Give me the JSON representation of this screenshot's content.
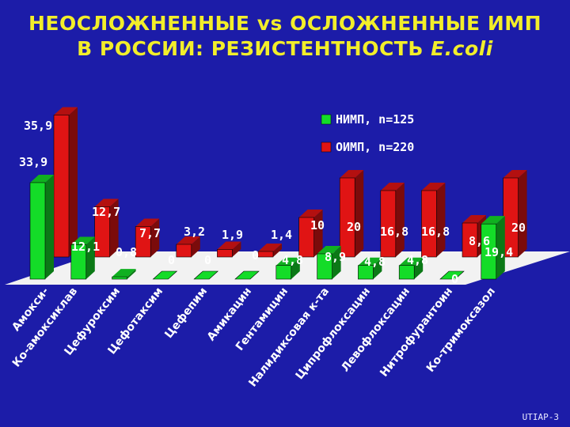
{
  "title_line1": "НЕОСЛОЖНЕННЫЕ vs ОСЛОЖНЕННЫЕ ИМП",
  "title_line2_prefix": "В РОССИИ: РЕЗИСТЕНТНОСТЬ ",
  "title_line2_organism": "E.coli",
  "footer": "UTIAP-3",
  "colors": {
    "background": "#1c1ca8",
    "title": "#f2ee2a",
    "nimp": "#14dc28",
    "oimp": "#e01414",
    "floor": "#f2f2f2",
    "labels": "#ffffff"
  },
  "chart_data": {
    "type": "bar",
    "style": "3d-perspective",
    "categories": [
      "Амокси-",
      "Ко-амоксиклав",
      "Цефуроксим",
      "Цефотаксим",
      "Цефепим",
      "Амикацин",
      "Гентамицин",
      "Налидиксовая к-та",
      "Ципрофлоксацин",
      "Левофлоксацин",
      "Нитрофурантоин",
      "Ко-тримоксазол"
    ],
    "series": [
      {
        "name": "НИМП, n=125",
        "color": "#14dc28",
        "values": [
          33.9,
          12.1,
          0.8,
          0,
          0,
          0,
          4.8,
          8.9,
          4.8,
          4.8,
          0,
          19.4
        ],
        "labels": [
          "33,9",
          "12,1",
          "0,8",
          "0",
          "0",
          "0",
          "4,8",
          "8,9",
          "4,8",
          "4,8",
          "0",
          "19,4"
        ]
      },
      {
        "name": "ОИМП, n=220",
        "color": "#e01414",
        "values": [
          35.9,
          12.7,
          7.7,
          3.2,
          1.9,
          1.4,
          10,
          20,
          16.8,
          16.8,
          8.6,
          20
        ],
        "labels": [
          "35,9",
          "12,7",
          "7,7",
          "3,2",
          "1,9",
          "1,4",
          "10",
          "20",
          "16,8",
          "16,8",
          "8,6",
          "20"
        ]
      }
    ],
    "legend_position": "top-right"
  }
}
